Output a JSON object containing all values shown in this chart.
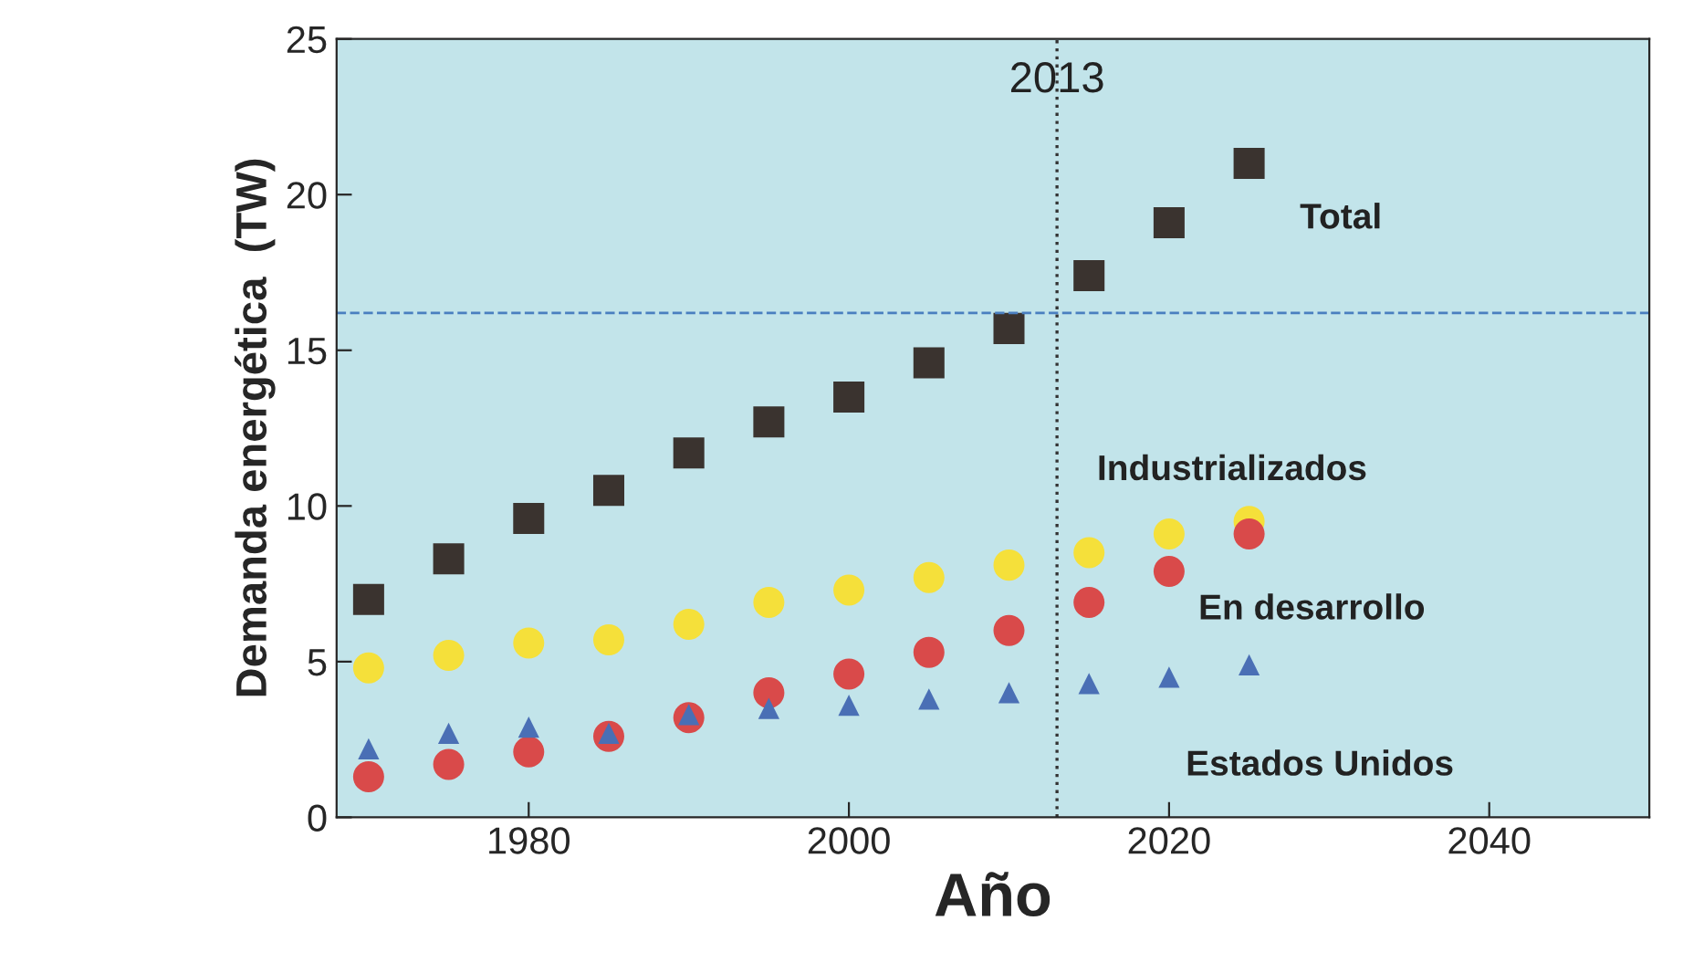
{
  "chart_data": {
    "type": "scatter",
    "xlabel": "Año",
    "ylabel": "Demanda energética  (TW)",
    "xlim": [
      1968,
      2050
    ],
    "ylim": [
      0,
      25
    ],
    "xticks": [
      1980,
      2000,
      2020,
      2040
    ],
    "yticks": [
      0,
      5,
      10,
      15,
      20,
      25
    ],
    "grid": false,
    "legend": false,
    "series": [
      {
        "name": "Total",
        "color": "#3a332f",
        "marker": "square",
        "x": [
          1970,
          1975,
          1980,
          1985,
          1990,
          1995,
          2000,
          2005,
          2010,
          2015,
          2020,
          2025
        ],
        "values": [
          7.0,
          8.3,
          9.6,
          10.5,
          11.7,
          12.7,
          13.5,
          14.6,
          15.7,
          17.4,
          19.1,
          21.0
        ]
      },
      {
        "name": "Industrializados",
        "color": "#f5e03a",
        "marker": "circle",
        "x": [
          1970,
          1975,
          1980,
          1985,
          1990,
          1995,
          2000,
          2005,
          2010,
          2015,
          2020,
          2025
        ],
        "values": [
          4.8,
          5.2,
          5.6,
          5.7,
          6.2,
          6.9,
          7.3,
          7.7,
          8.1,
          8.5,
          9.1,
          9.5
        ]
      },
      {
        "name": "En desarrollo",
        "color": "#d94a4a",
        "marker": "circle",
        "x": [
          1970,
          1975,
          1980,
          1985,
          1990,
          1995,
          2000,
          2005,
          2010,
          2015,
          2020,
          2025
        ],
        "values": [
          1.3,
          1.7,
          2.1,
          2.6,
          3.2,
          4.0,
          4.6,
          5.3,
          6.0,
          6.9,
          7.9,
          9.1
        ]
      },
      {
        "name": "Estados Unidos",
        "color": "#4a6fb5",
        "marker": "triangle",
        "x": [
          1970,
          1975,
          1980,
          1985,
          1990,
          1995,
          2000,
          2005,
          2010,
          2015,
          2020,
          2025
        ],
        "values": [
          2.2,
          2.7,
          2.9,
          2.7,
          3.3,
          3.5,
          3.6,
          3.8,
          4.0,
          4.3,
          4.5,
          4.9
        ]
      }
    ],
    "ref_lines": [
      {
        "axis": "x",
        "value": 2013,
        "label": "2013",
        "color": "#333333",
        "line_style": "dotted"
      },
      {
        "axis": "y",
        "value": 16.2,
        "label": null,
        "color": "#4a7fc0",
        "line_style": "dashed"
      }
    ]
  }
}
